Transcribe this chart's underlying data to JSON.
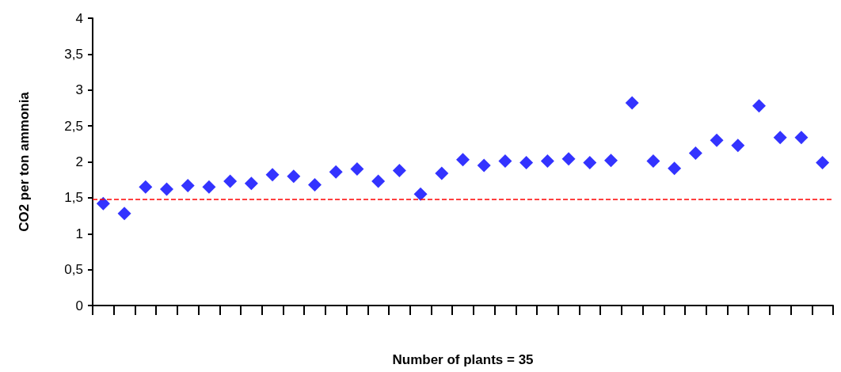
{
  "chart_data": {
    "type": "scatter",
    "xlabel": "Number of plants = 35",
    "ylabel": "CO2 per ton ammonia",
    "categories": [
      null,
      null,
      null,
      null,
      null,
      null,
      null,
      null,
      null,
      null,
      null,
      null,
      null,
      null,
      null,
      null,
      null,
      null,
      null,
      null,
      null,
      null,
      null,
      null,
      null,
      null,
      null,
      null,
      null,
      null,
      null,
      null,
      null,
      null,
      null
    ],
    "series": [
      {
        "color": "#0000ff",
        "values": [
          1.42,
          1.28,
          1.65,
          1.62,
          1.67,
          1.65,
          1.73,
          1.7,
          1.82,
          1.8,
          1.68,
          1.86,
          1.9,
          1.73,
          1.88,
          1.55,
          1.84,
          2.03,
          1.95,
          2.01,
          1.99,
          2.01,
          2.04,
          1.99,
          2.02,
          2.82,
          2.01,
          1.91,
          2.12,
          2.3,
          2.23,
          2.78,
          2.34,
          2.34,
          1.99
        ]
      }
    ],
    "ylim": [
      0,
      4
    ],
    "yticks": [
      0,
      {
        "value": 0.5,
        "label": "0,5"
      },
      1,
      {
        "value": 1.5,
        "label": "1,5"
      },
      2,
      {
        "value": 2.5,
        "label": "2,5"
      },
      3,
      {
        "value": 3.5,
        "label": "3,5"
      },
      4
    ],
    "ref_lines": [
      {
        "axis": "y",
        "value": 1.48,
        "label": null,
        "color": "#ff0000",
        "line_style": "dashed"
      }
    ],
    "marker": "diamond",
    "grid": false
  }
}
